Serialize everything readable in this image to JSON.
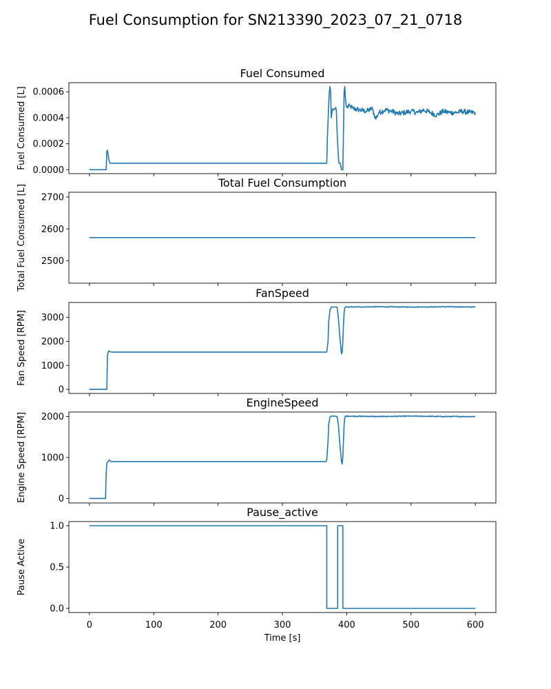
{
  "suptitle": "Fuel Consumption for SN213390_2023_07_21_0718",
  "chart_data": [
    {
      "type": "line",
      "title": "Fuel Consumed",
      "xlabel": "",
      "ylabel": "Fuel Consumed [L]",
      "xlim": [
        -32,
        632
      ],
      "ylim": [
        -3e-05,
        0.00067
      ],
      "yticks": [
        0.0,
        0.0002,
        0.0004,
        0.0006
      ],
      "ytick_labels": [
        "0.0000",
        "0.0002",
        "0.0004",
        "0.0006"
      ],
      "noise": {
        "from": 398,
        "to": 600,
        "amplitude": 2e-05
      },
      "x": [
        0,
        26,
        27,
        28,
        29,
        30,
        32,
        34,
        369,
        370,
        372,
        373,
        374,
        375,
        376,
        378,
        380,
        383,
        384,
        385,
        386,
        387,
        388,
        390,
        392,
        393,
        394,
        395,
        396,
        397,
        398,
        399,
        400,
        405,
        410,
        420,
        430,
        440,
        445,
        450,
        460,
        470,
        480,
        490,
        500,
        510,
        520,
        530,
        540,
        550,
        560,
        570,
        580,
        590,
        600
      ],
      "y": [
        0.0,
        0.0,
        0.00014,
        0.00015,
        0.00012,
        8e-05,
        5e-05,
        5e-05,
        5e-05,
        0.00025,
        0.0005,
        0.0006,
        0.00064,
        0.0006,
        0.0004,
        0.00047,
        0.00046,
        0.00048,
        0.00045,
        0.0003,
        0.0002,
        0.0001,
        5e-05,
        5e-05,
        0.0,
        0.0,
        0.0,
        0.0003,
        0.0006,
        0.00064,
        0.00055,
        0.0005,
        0.00048,
        0.00049,
        0.00047,
        0.00046,
        0.00045,
        0.00047,
        0.00039,
        0.00044,
        0.00046,
        0.00045,
        0.00043,
        0.00044,
        0.00045,
        0.00044,
        0.00046,
        0.00044,
        0.00042,
        0.00045,
        0.00044,
        0.00044,
        0.00045,
        0.00044,
        0.00044
      ]
    },
    {
      "type": "line",
      "title": "Total Fuel Consumption",
      "xlabel": "",
      "ylabel": "Total Fuel Consumed [L]",
      "xlim": [
        -32,
        632
      ],
      "ylim": [
        2430,
        2715
      ],
      "yticks": [
        2500,
        2600,
        2700
      ],
      "ytick_labels": [
        "2500",
        "2600",
        "2700"
      ],
      "x": [
        0,
        600
      ],
      "y": [
        2573,
        2573
      ]
    },
    {
      "type": "line",
      "title": "FanSpeed",
      "xlabel": "",
      "ylabel": "Fan Speed [RPM]",
      "xlim": [
        -32,
        632
      ],
      "ylim": [
        -170,
        3620
      ],
      "yticks": [
        0,
        1000,
        2000,
        3000
      ],
      "ytick_labels": [
        "0",
        "1000",
        "2000",
        "3000"
      ],
      "noise": {
        "from": 400,
        "to": 600,
        "amplitude": 15
      },
      "x": [
        0,
        27,
        28,
        29,
        30,
        31,
        33,
        35,
        368,
        369,
        371,
        372,
        374,
        376,
        380,
        385,
        387,
        389,
        391,
        392,
        393,
        394,
        395,
        396,
        397,
        398,
        399,
        400,
        450,
        500,
        550,
        600
      ],
      "y": [
        0,
        0,
        1400,
        1550,
        1600,
        1580,
        1560,
        1550,
        1550,
        1560,
        2000,
        2800,
        3300,
        3430,
        3430,
        3430,
        3000,
        2300,
        1700,
        1480,
        1550,
        2000,
        2700,
        3200,
        3400,
        3430,
        3440,
        3430,
        3440,
        3430,
        3440,
        3430
      ]
    },
    {
      "type": "line",
      "title": "EngineSpeed",
      "xlabel": "",
      "ylabel": "Engine Speed [RPM]",
      "xlim": [
        -32,
        632
      ],
      "ylim": [
        -110,
        2110
      ],
      "yticks": [
        0,
        1000,
        2000
      ],
      "ytick_labels": [
        "0",
        "1000",
        "2000"
      ],
      "noise": {
        "from": 400,
        "to": 600,
        "amplitude": 10
      },
      "x": [
        0,
        25,
        26,
        27,
        28,
        29,
        30,
        31,
        32,
        34,
        36,
        368,
        369,
        371,
        372,
        374,
        376,
        380,
        385,
        387,
        389,
        391,
        392,
        393,
        394,
        395,
        396,
        397,
        398,
        399,
        400,
        450,
        500,
        550,
        600
      ],
      "y": [
        0,
        0,
        600,
        850,
        880,
        900,
        920,
        940,
        920,
        900,
        900,
        900,
        950,
        1400,
        1800,
        1990,
        2010,
        2010,
        2000,
        1800,
        1400,
        1050,
        900,
        840,
        1000,
        1400,
        1800,
        1980,
        2010,
        2000,
        2010,
        2000,
        2010,
        2000,
        2000
      ]
    },
    {
      "type": "line",
      "title": "Pause_active",
      "xlabel": "Time [s]",
      "ylabel": "Pause Active",
      "xlim": [
        -32,
        632
      ],
      "ylim": [
        -0.05,
        1.05
      ],
      "yticks": [
        0.0,
        0.5,
        1.0
      ],
      "ytick_labels": [
        "0.0",
        "0.5",
        "1.0"
      ],
      "xticks": [
        0,
        100,
        200,
        300,
        400,
        500,
        600
      ],
      "xtick_labels": [
        "0",
        "100",
        "200",
        "300",
        "400",
        "500",
        "600"
      ],
      "x": [
        0,
        369,
        369,
        386,
        386,
        394,
        394,
        600
      ],
      "y": [
        1,
        1,
        0,
        0,
        1,
        1,
        0,
        0
      ]
    }
  ]
}
